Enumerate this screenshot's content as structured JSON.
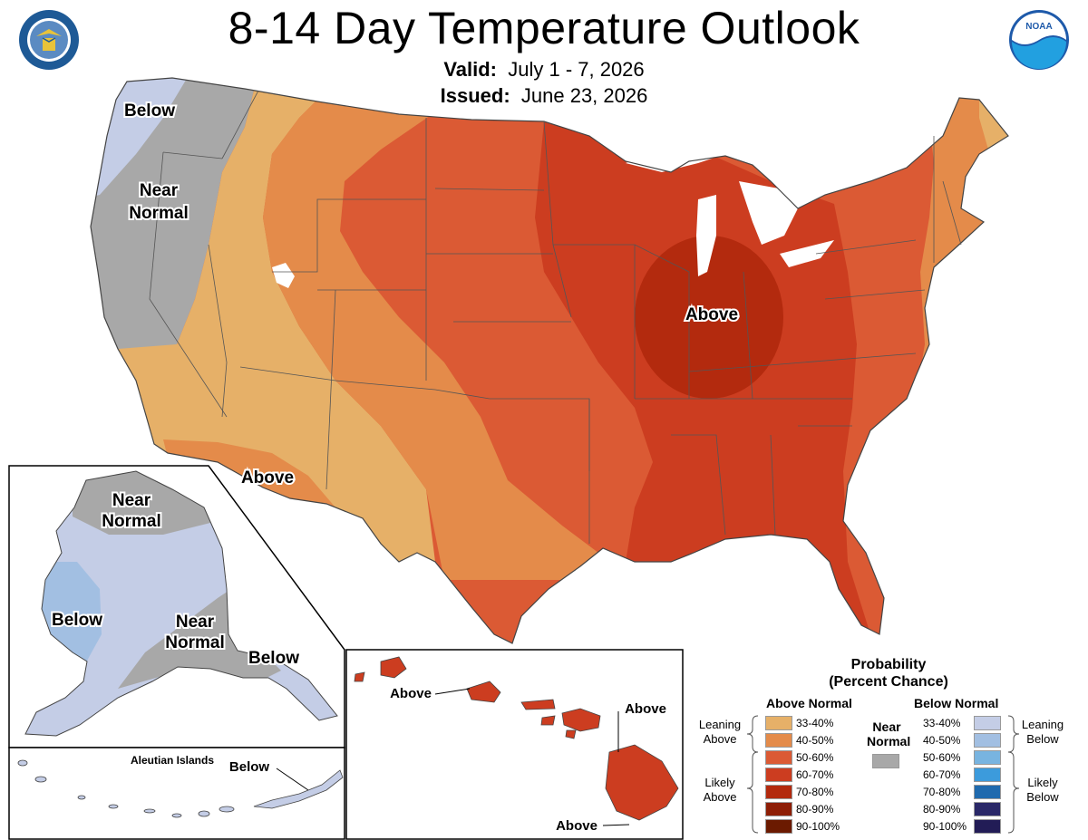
{
  "header": {
    "title": "8-14 Day Temperature Outlook",
    "valid_label": "Valid:",
    "valid_value": "July 1 - 7, 2026",
    "issued_label": "Issued:",
    "issued_value": "June 23, 2026",
    "noaa_logo_text": "NOAA"
  },
  "colors": {
    "above_33_40": "#E6B068",
    "above_40_50": "#E48B4A",
    "above_50_60": "#DB5A34",
    "above_60_70": "#CC3D20",
    "above_70_80": "#B32A0E",
    "above_80_90": "#8E1E06",
    "above_90_100": "#6B1A00",
    "near_normal": "#A8A8A8",
    "below_33_40": "#C4CDE6",
    "below_40_50": "#A2BFE2",
    "below_50_60": "#78B4E0",
    "below_60_70": "#3C9BDC",
    "below_70_80": "#1F6AAE",
    "below_80_90": "#2A2868",
    "below_90_100": "#221C56"
  },
  "map_labels": {
    "conus_below": "Below",
    "conus_near_normal_line1": "Near",
    "conus_near_normal_line2": "Normal",
    "conus_above_midwest": "Above",
    "conus_above_southwest": "Above",
    "alaska_near_north_line1": "Near",
    "alaska_near_north_line2": "Normal",
    "alaska_below_west": "Below",
    "alaska_near_south_line1": "Near",
    "alaska_near_south_line2": "Normal",
    "alaska_below_southeast": "Below",
    "aleutian_title": "Aleutian Islands",
    "aleutian_below": "Below",
    "hawaii_above_1": "Above",
    "hawaii_above_2": "Above",
    "hawaii_above_3": "Above"
  },
  "legend": {
    "title_line1": "Probability",
    "title_line2": "(Percent Chance)",
    "above_header": "Above Normal",
    "below_header": "Below Normal",
    "near_line1": "Near",
    "near_line2": "Normal",
    "leaning_above_1": "Leaning",
    "leaning_above_2": "Above",
    "likely_above_1": "Likely",
    "likely_above_2": "Above",
    "leaning_below_1": "Leaning",
    "leaning_below_2": "Below",
    "likely_below_1": "Likely",
    "likely_below_2": "Below",
    "above_ranges": [
      "33-40%",
      "40-50%",
      "50-60%",
      "60-70%",
      "70-80%",
      "80-90%",
      "90-100%"
    ],
    "below_ranges": [
      "33-40%",
      "40-50%",
      "50-60%",
      "60-70%",
      "70-80%",
      "80-90%",
      "90-100%"
    ]
  }
}
